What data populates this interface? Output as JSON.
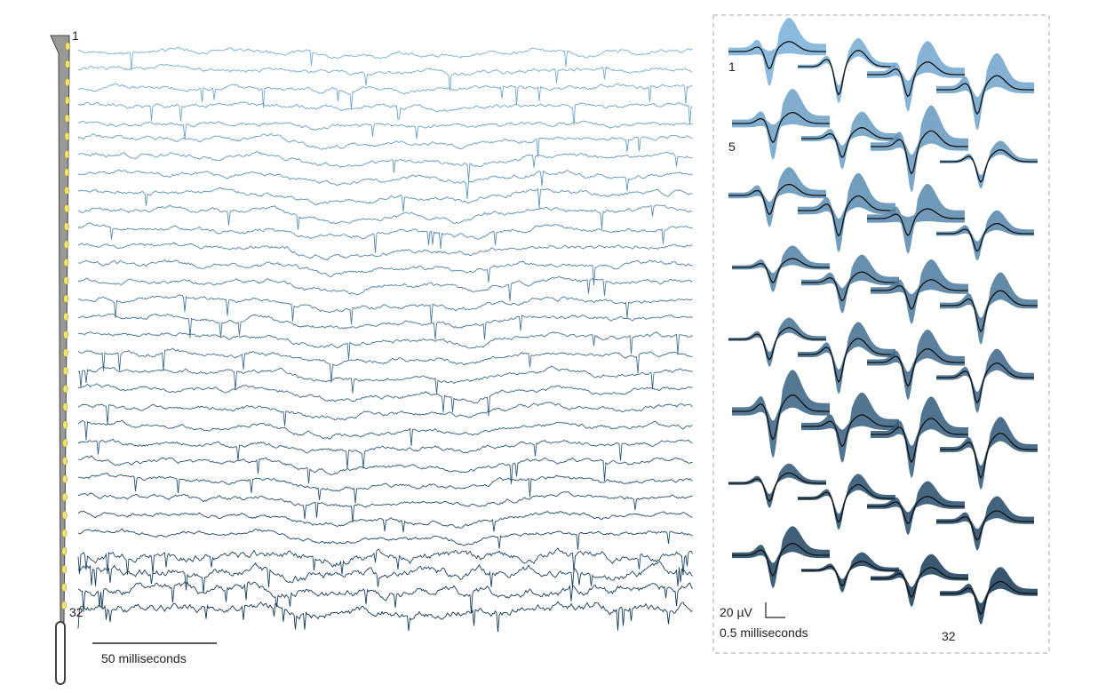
{
  "probe": {
    "first_channel": "1",
    "last_channel": "32"
  },
  "traces": {
    "scale_bar": "50 milliseconds"
  },
  "waveforms": {
    "labels": [
      "1",
      "5",
      "32"
    ],
    "amplitude_scale": "20 µV",
    "time_scale": "0.5 milliseconds"
  }
}
